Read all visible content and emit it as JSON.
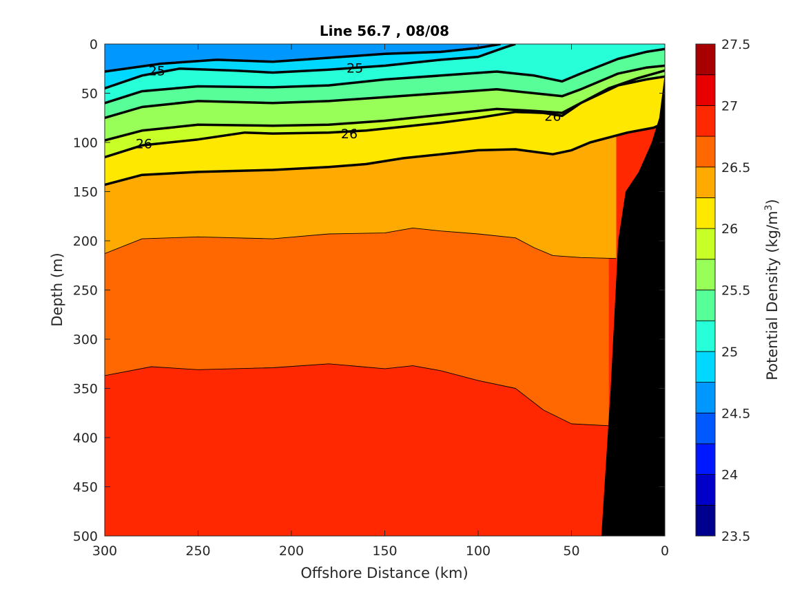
{
  "chart_data": {
    "type": "contour",
    "title": "Line 56.7 , 08/08",
    "xlabel": "Offshore Distance (km)",
    "ylabel": "Depth (m)",
    "xlim": [
      300,
      0
    ],
    "ylim": [
      500,
      0
    ],
    "x_direction": "reversed",
    "y_direction": "reversed",
    "xticks": [
      "300",
      "250",
      "200",
      "150",
      "100",
      "50",
      "0"
    ],
    "yticks": [
      "0",
      "50",
      "100",
      "150",
      "200",
      "250",
      "300",
      "350",
      "400",
      "450",
      "500"
    ],
    "colorbar": {
      "label": "Potential Density (kg/m",
      "label_sup": "3",
      "label_end": ")",
      "range": [
        23.5,
        27.5
      ],
      "step": 0.25,
      "ticks": [
        "23.5",
        "24",
        "24.5",
        "25",
        "25.5",
        "26",
        "26.5",
        "27",
        "27.5"
      ],
      "colors": [
        "#00008f",
        "#0000c8",
        "#0018ff",
        "#0058ff",
        "#0098ff",
        "#00d8ff",
        "#27ffd8",
        "#58ff98",
        "#98ff58",
        "#c8ff27",
        "#ffe800",
        "#ffaa00",
        "#ff6800",
        "#ff2800",
        "#e80000",
        "#a80000"
      ]
    },
    "labeled_contours": [
      "25",
      "26"
    ],
    "contour_lines": [
      {
        "level": 24.75,
        "points": [
          [
            300,
            28
          ],
          [
            270,
            20
          ],
          [
            240,
            16
          ],
          [
            210,
            18
          ],
          [
            180,
            14
          ],
          [
            150,
            10
          ],
          [
            120,
            8
          ],
          [
            100,
            4
          ],
          [
            88,
            0
          ]
        ]
      },
      {
        "level": 25.0,
        "points": [
          [
            300,
            45
          ],
          [
            280,
            32
          ],
          [
            260,
            25
          ],
          [
            230,
            27
          ],
          [
            210,
            29
          ],
          [
            180,
            26
          ],
          [
            150,
            22
          ],
          [
            120,
            16
          ],
          [
            100,
            13
          ],
          [
            85,
            3
          ],
          [
            80,
            0
          ]
        ]
      },
      {
        "level": 25.25,
        "points": [
          [
            300,
            60
          ],
          [
            280,
            48
          ],
          [
            250,
            43
          ],
          [
            210,
            44
          ],
          [
            180,
            42
          ],
          [
            150,
            36
          ],
          [
            120,
            32
          ],
          [
            90,
            28
          ],
          [
            70,
            32
          ],
          [
            55,
            38
          ],
          [
            45,
            30
          ],
          [
            25,
            15
          ],
          [
            10,
            8
          ],
          [
            0,
            5
          ]
        ]
      },
      {
        "level": 25.5,
        "points": [
          [
            300,
            75
          ],
          [
            280,
            64
          ],
          [
            250,
            58
          ],
          [
            210,
            60
          ],
          [
            180,
            58
          ],
          [
            150,
            54
          ],
          [
            120,
            50
          ],
          [
            90,
            46
          ],
          [
            70,
            50
          ],
          [
            55,
            53
          ],
          [
            45,
            46
          ],
          [
            25,
            30
          ],
          [
            10,
            24
          ],
          [
            0,
            22
          ]
        ]
      },
      {
        "level": 25.75,
        "points": [
          [
            300,
            98
          ],
          [
            280,
            88
          ],
          [
            250,
            82
          ],
          [
            210,
            83
          ],
          [
            180,
            82
          ],
          [
            150,
            78
          ],
          [
            120,
            72
          ],
          [
            90,
            66
          ],
          [
            70,
            68
          ],
          [
            55,
            70
          ],
          [
            45,
            60
          ],
          [
            25,
            42
          ],
          [
            10,
            36
          ],
          [
            0,
            33
          ]
        ]
      },
      {
        "level": 26.0,
        "points": [
          [
            300,
            115
          ],
          [
            280,
            103
          ],
          [
            250,
            97
          ],
          [
            225,
            90
          ],
          [
            210,
            91
          ],
          [
            180,
            90
          ],
          [
            160,
            88
          ],
          [
            140,
            84
          ],
          [
            120,
            80
          ],
          [
            100,
            75
          ],
          [
            80,
            69
          ],
          [
            65,
            70
          ],
          [
            55,
            73
          ],
          [
            45,
            60
          ],
          [
            30,
            45
          ],
          [
            15,
            35
          ],
          [
            0,
            27
          ]
        ]
      },
      {
        "level": 26.25,
        "points": [
          [
            300,
            143
          ],
          [
            280,
            133
          ],
          [
            250,
            130
          ],
          [
            210,
            128
          ],
          [
            180,
            125
          ],
          [
            160,
            122
          ],
          [
            140,
            116
          ],
          [
            120,
            112
          ],
          [
            100,
            108
          ],
          [
            80,
            107
          ],
          [
            60,
            112
          ],
          [
            50,
            108
          ],
          [
            40,
            100
          ],
          [
            20,
            90
          ],
          [
            6,
            85
          ],
          [
            0,
            80
          ]
        ]
      },
      {
        "level": 26.5,
        "points": [
          [
            300,
            213
          ],
          [
            280,
            198
          ],
          [
            250,
            196
          ],
          [
            210,
            198
          ],
          [
            180,
            193
          ],
          [
            150,
            192
          ],
          [
            135,
            187
          ],
          [
            120,
            190
          ],
          [
            100,
            193
          ],
          [
            80,
            197
          ],
          [
            70,
            207
          ],
          [
            60,
            215
          ],
          [
            45,
            217
          ],
          [
            26,
            218
          ]
        ]
      },
      {
        "level": 26.75,
        "points": [
          [
            300,
            337
          ],
          [
            275,
            328
          ],
          [
            250,
            331
          ],
          [
            210,
            329
          ],
          [
            180,
            325
          ],
          [
            150,
            330
          ],
          [
            135,
            327
          ],
          [
            120,
            332
          ],
          [
            100,
            342
          ],
          [
            80,
            350
          ],
          [
            65,
            372
          ],
          [
            50,
            386
          ],
          [
            30,
            388
          ]
        ]
      }
    ],
    "contour_label_positions": [
      {
        "text": "25",
        "x": 272,
        "y": 27
      },
      {
        "text": "25",
        "x": 166,
        "y": 24
      },
      {
        "text": "26",
        "x": 279,
        "y": 101
      },
      {
        "text": "26",
        "x": 169,
        "y": 91
      },
      {
        "text": "26",
        "x": 60,
        "y": 73
      }
    ],
    "bathymetry": [
      [
        34,
        500
      ],
      [
        29,
        350
      ],
      [
        25,
        200
      ],
      [
        21,
        150
      ],
      [
        14,
        130
      ],
      [
        7,
        100
      ],
      [
        3,
        75
      ],
      [
        0,
        30
      ],
      [
        0,
        500
      ]
    ]
  }
}
